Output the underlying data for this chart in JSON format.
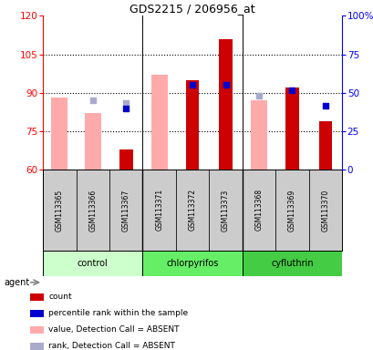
{
  "title": "GDS2215 / 206956_at",
  "samples": [
    "GSM113365",
    "GSM113366",
    "GSM113367",
    "GSM113371",
    "GSM113372",
    "GSM113373",
    "GSM113368",
    "GSM113369",
    "GSM113370"
  ],
  "ylim_left": [
    60,
    120
  ],
  "ylim_right": [
    0,
    100
  ],
  "left_ticks": [
    60,
    75,
    90,
    105,
    120
  ],
  "right_ticks": [
    0,
    25,
    50,
    75,
    100
  ],
  "right_tick_labels": [
    "0",
    "25",
    "50",
    "75",
    "100%"
  ],
  "hgrid_values": [
    75,
    90,
    105
  ],
  "group_dividers": [
    2.5,
    5.5
  ],
  "red_values": [
    null,
    null,
    68,
    null,
    95,
    111,
    null,
    92,
    79
  ],
  "blue_values": [
    null,
    null,
    84,
    null,
    93,
    93,
    null,
    91,
    85
  ],
  "pink_values": [
    88,
    82,
    null,
    97,
    null,
    null,
    87,
    null,
    null
  ],
  "lavender_values": [
    null,
    87,
    86,
    null,
    null,
    null,
    89,
    null,
    null
  ],
  "red_color": "#cc0000",
  "blue_color": "#0000cc",
  "pink_color": "#ffaaaa",
  "lavender_color": "#aaaacc",
  "bar_width": 0.4,
  "pink_bar_width": 0.5,
  "group_labels": [
    "control",
    "chlorpyrifos",
    "cyfluthrin"
  ],
  "group_starts": [
    0,
    3,
    6
  ],
  "group_ends": [
    2,
    5,
    8
  ],
  "group_colors": [
    "#ccffcc",
    "#66ee66",
    "#44cc44"
  ],
  "agent_label": "agent",
  "legend_items": [
    {
      "color": "#cc0000",
      "label": "count"
    },
    {
      "color": "#0000cc",
      "label": "percentile rank within the sample"
    },
    {
      "color": "#ffaaaa",
      "label": "value, Detection Call = ABSENT"
    },
    {
      "color": "#aaaacc",
      "label": "rank, Detection Call = ABSENT"
    }
  ]
}
